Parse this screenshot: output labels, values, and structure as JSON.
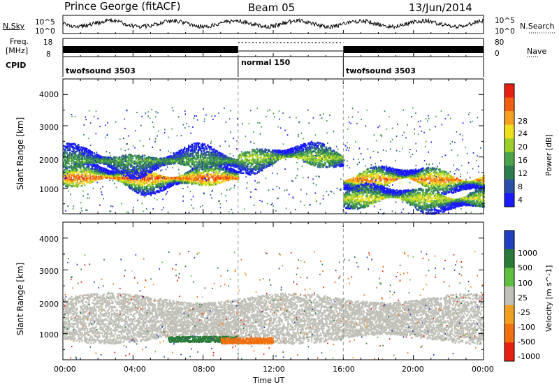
{
  "header": {
    "station": "Prince George (fitACF)",
    "beam": "Beam 05",
    "date": "13/Jun/2014"
  },
  "side_labels": {
    "nsky": "N.Sky",
    "freq_line1": "Freq.",
    "freq_line2": "[MHz]",
    "cpid": "CPID",
    "nsearch": "N.Search",
    "nave": "Nave"
  },
  "noise_axis": {
    "top": "10^5",
    "bottom": "10^0"
  },
  "freq_axis": {
    "top": "18",
    "bottom": "8"
  },
  "nave_axis": {
    "top": "80",
    "bottom": "0"
  },
  "cpid_segments": [
    {
      "name": "twofsound 3503",
      "start_hour": 0,
      "end_hour": 10
    },
    {
      "name": "normal 150",
      "start_hour": 10,
      "end_hour": 16
    },
    {
      "name": "twofsound 3503",
      "start_hour": 16,
      "end_hour": 24
    }
  ],
  "time_axis": {
    "label": "Time UT",
    "ticks": [
      "00:00",
      "04:00",
      "08:00",
      "12:00",
      "16:00",
      "20:00",
      "00:00"
    ],
    "range_hours": [
      0,
      24
    ]
  },
  "power_panel": {
    "ylabel": "Slant Range [km]",
    "yticks": [
      "4000",
      "3000",
      "2000",
      "1000"
    ],
    "colorbar_label": "Power [dB]",
    "colorbar_ticks": [
      "28",
      "24",
      "20",
      "16",
      "12",
      "8",
      "4"
    ],
    "colors": [
      "#1a1aff",
      "#2a4fa8",
      "#2e7d4f",
      "#4aa24a",
      "#9bcf2a",
      "#f0e020",
      "#f5a020",
      "#f06010",
      "#e82010"
    ]
  },
  "velocity_panel": {
    "ylabel": "Slant Range [km]",
    "yticks": [
      "4000",
      "3000",
      "2000",
      "1000"
    ],
    "colorbar_label": "Velocity [m s^-1]",
    "colorbar_ticks": [
      "1000",
      "500",
      "100",
      "25",
      "-25",
      "-100",
      "-500",
      "-1000"
    ],
    "colors": [
      "#2040c0",
      "#2a7a3a",
      "#5fc040",
      "#c0c0b8",
      "#f0a020",
      "#f07010",
      "#e82010"
    ]
  },
  "chart_data": {
    "type": "heatmap",
    "title": "Prince George (fitACF)  Beam 05  13/Jun/2014",
    "xlabel": "Time UT",
    "ylabel": "Slant Range [km]",
    "xlim_hours": [
      0,
      24
    ],
    "ylim_km": [
      180,
      4500
    ],
    "mode_change_hours": [
      10,
      16
    ],
    "power_bands": [
      {
        "t_start": 0,
        "t_end": 10,
        "range_km": 1350,
        "power_db": 26
      },
      {
        "t_start": 0,
        "t_end": 10,
        "range_km": 1900,
        "power_db": 12
      },
      {
        "t_start": 10,
        "t_end": 16,
        "range_km": 2000,
        "power_db": 16
      },
      {
        "t_start": 16,
        "t_end": 24,
        "range_km": 1300,
        "power_db": 24
      },
      {
        "t_start": 16,
        "t_end": 24,
        "range_km": 700,
        "power_db": 18
      }
    ],
    "velocity_bands": [
      {
        "t_start": 0,
        "t_end": 24,
        "range_km": 1500,
        "velocity_ms": 0
      },
      {
        "t_start": 6,
        "t_end": 10,
        "range_km": 850,
        "velocity_ms": 150
      },
      {
        "t_start": 9,
        "t_end": 12,
        "range_km": 800,
        "velocity_ms": -150
      }
    ]
  }
}
